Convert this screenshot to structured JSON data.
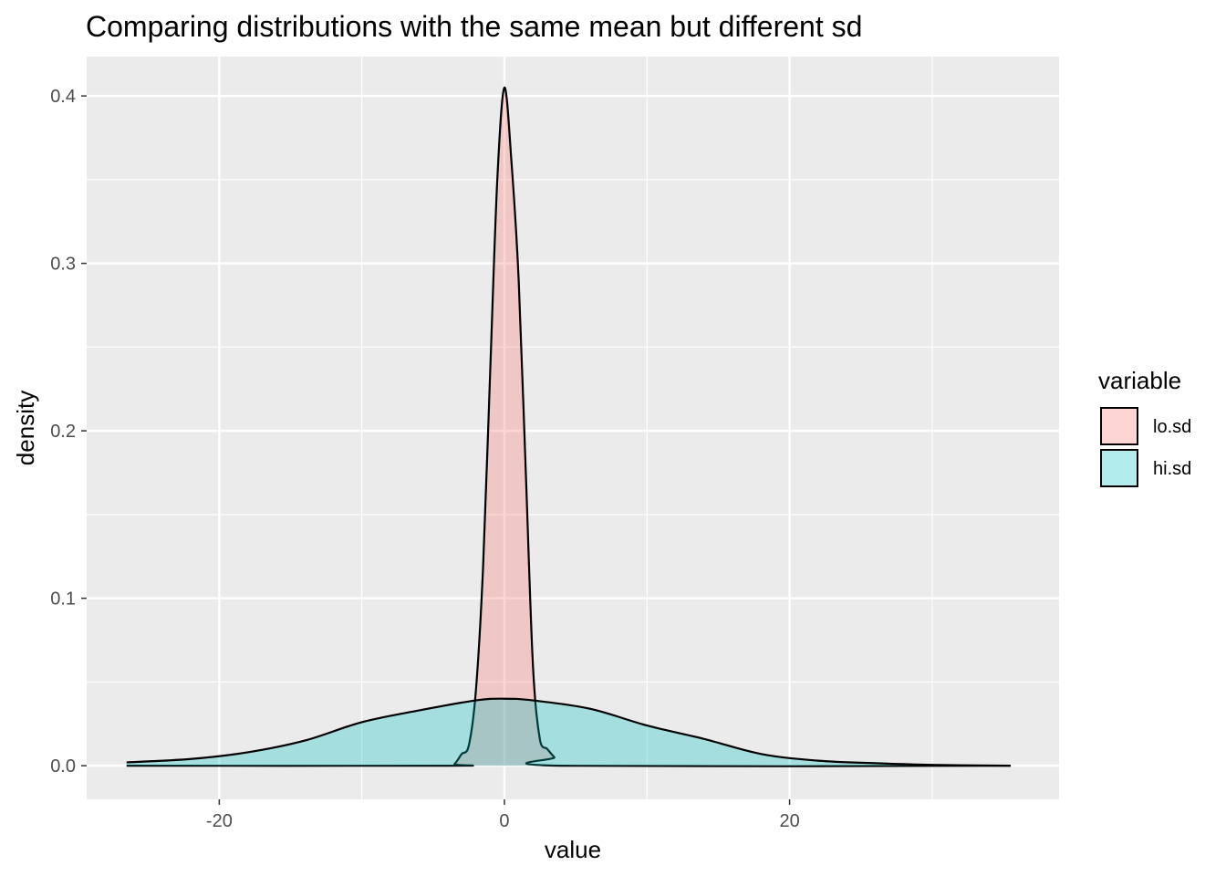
{
  "chart_data": {
    "type": "area",
    "title": "Comparing distributions with the same mean but different sd",
    "xlabel": "value",
    "ylabel": "density",
    "xlim": [
      -29.3,
      38.9
    ],
    "ylim": [
      -0.0201,
      0.4235
    ],
    "x_ticks": [
      -20,
      0,
      20
    ],
    "x_tick_labels": [
      "-20",
      "0",
      "20"
    ],
    "x_minor_ticks": [
      -30,
      -10,
      10,
      30
    ],
    "y_ticks": [
      0.0,
      0.1,
      0.2,
      0.3,
      0.4
    ],
    "y_tick_labels": [
      "0.0",
      "0.1",
      "0.2",
      "0.3",
      "0.4"
    ],
    "y_minor_ticks": [
      0.05,
      0.15,
      0.25,
      0.35
    ],
    "grid": true,
    "legend": {
      "title": "variable",
      "position": "right",
      "entries": [
        "lo.sd",
        "hi.sd"
      ]
    },
    "series": [
      {
        "name": "lo.sd",
        "fill": "#F8766D",
        "fill_opacity": 0.3,
        "x": [
          -26.5,
          -4.0,
          -3.5,
          -3.0,
          -2.5,
          -2.0,
          -1.5,
          -1.0,
          -0.5,
          0.0,
          0.5,
          1.0,
          1.5,
          2.0,
          2.5,
          3.0,
          3.5,
          4.0,
          35.5
        ],
        "values": [
          0.0,
          0.0,
          0.001,
          0.007,
          0.012,
          0.045,
          0.118,
          0.235,
          0.35,
          0.405,
          0.36,
          0.29,
          0.175,
          0.06,
          0.015,
          0.01,
          0.005,
          0.0,
          0.0
        ]
      },
      {
        "name": "hi.sd",
        "fill": "#00BFC4",
        "fill_opacity": 0.3,
        "x": [
          -26.5,
          -22,
          -18,
          -14,
          -10,
          -6,
          -2,
          0,
          2,
          6,
          10,
          14,
          18,
          22,
          26,
          30,
          35.5
        ],
        "values": [
          0.002,
          0.004,
          0.008,
          0.015,
          0.026,
          0.033,
          0.039,
          0.04,
          0.039,
          0.034,
          0.024,
          0.016,
          0.007,
          0.003,
          0.0015,
          0.0005,
          0.0
        ]
      }
    ]
  }
}
